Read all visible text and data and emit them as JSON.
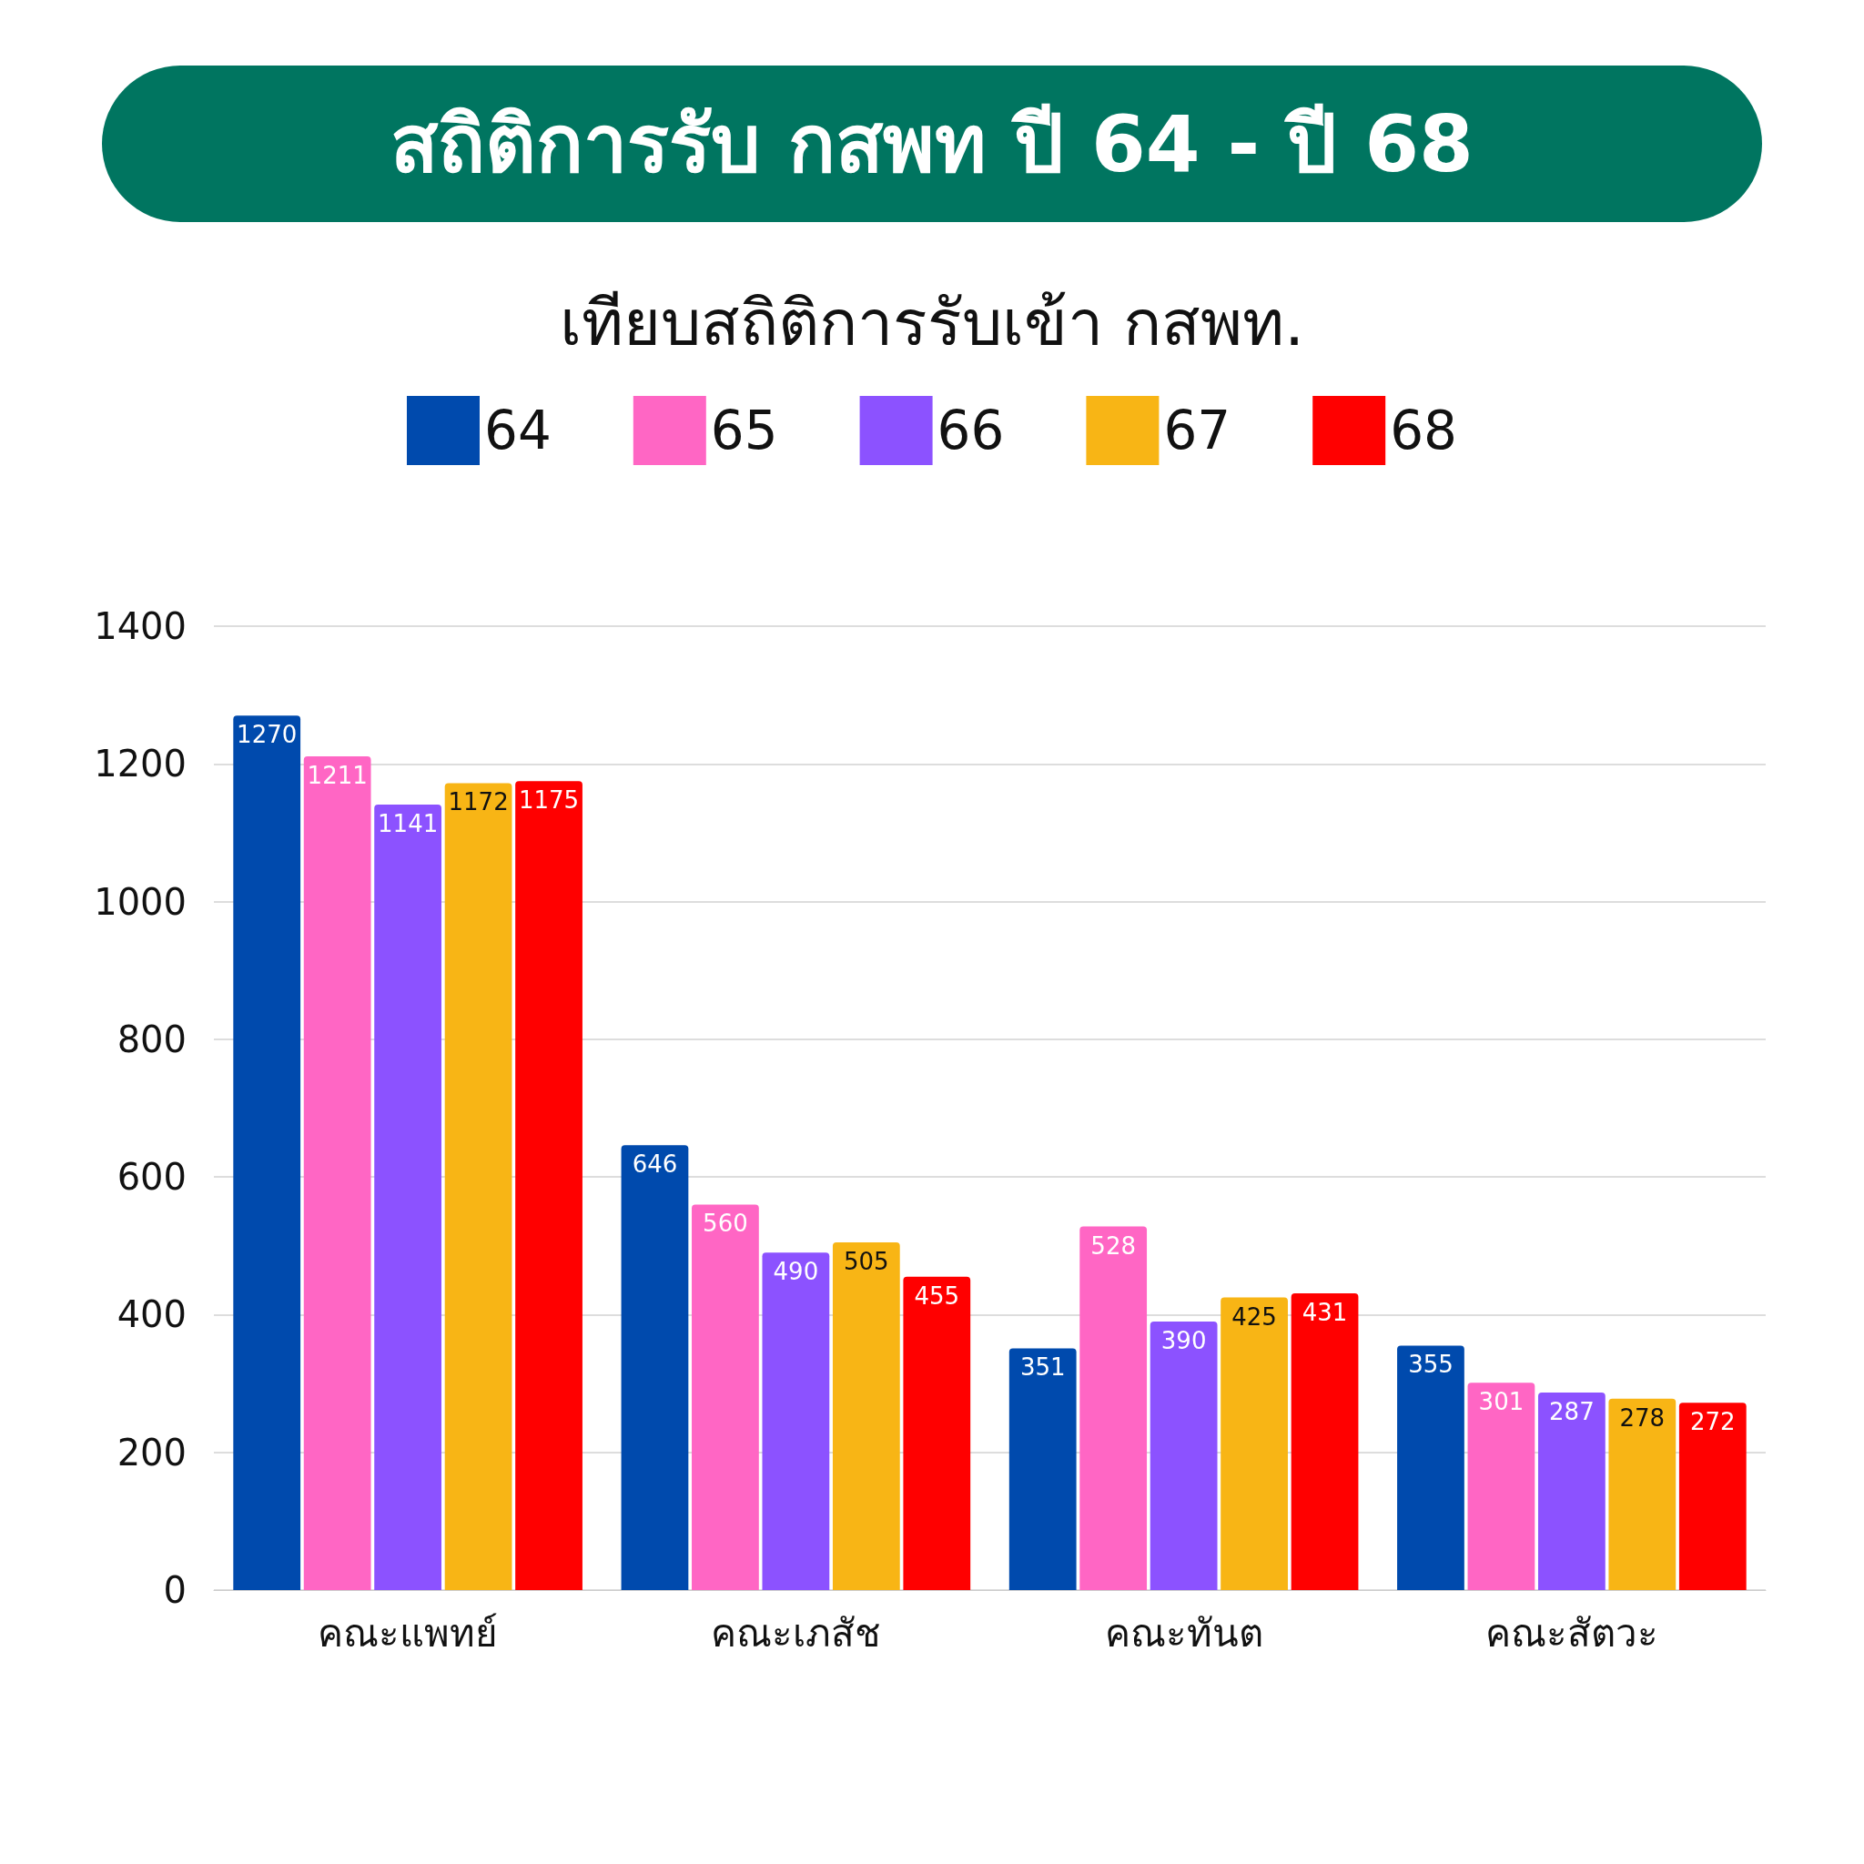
{
  "chart_data": {
    "type": "bar",
    "title": "สถิติการรับ กสพท ปี 64 - ปี 68",
    "subtitle": "เทียบสถิติการรับเข้า กสพท.",
    "categories": [
      "คณะแพทย์",
      "คณะเภสัช",
      "คณะทันต",
      "คณะสัตวะ"
    ],
    "series": [
      {
        "name": "64",
        "color": "#004aad",
        "values": [
          1270,
          646,
          351,
          355
        ]
      },
      {
        "name": "65",
        "color": "#ff66c4",
        "values": [
          1211,
          560,
          528,
          301
        ]
      },
      {
        "name": "66",
        "color": "#8c52ff",
        "values": [
          1141,
          490,
          390,
          287
        ]
      },
      {
        "name": "67",
        "color": "#f8b515",
        "values": [
          1172,
          505,
          425,
          278
        ]
      },
      {
        "name": "68",
        "color": "#ff0000",
        "values": [
          1175,
          455,
          431,
          272
        ]
      }
    ],
    "ylim": [
      0,
      1400
    ],
    "yticks": [
      0,
      200,
      400,
      600,
      800,
      1000,
      1200,
      1400
    ],
    "grid": "y",
    "legend": "top",
    "data_labels": true
  }
}
